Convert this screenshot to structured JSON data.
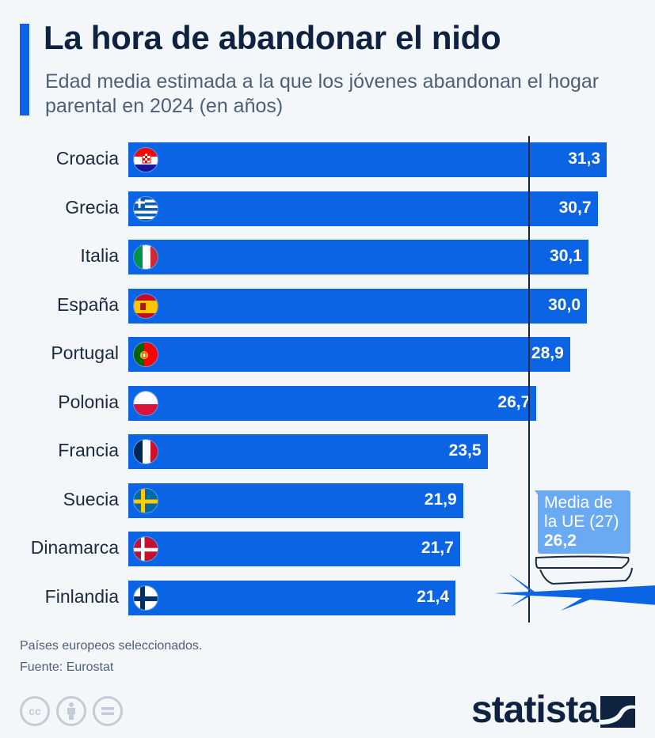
{
  "header": {
    "title": "La hora de abandonar el nido",
    "subtitle": "Edad media estimada a la que los jóvenes abandonan el hogar parental en 2024 (en años)"
  },
  "chart_data": {
    "type": "bar",
    "orientation": "horizontal",
    "title": "La hora de abandonar el nido",
    "subtitle": "Edad media estimada a la que los jóvenes abandonan el hogar parental en 2024 (en años)",
    "xlabel": "",
    "ylabel": "",
    "categories": [
      "Croacia",
      "Grecia",
      "Italia",
      "España",
      "Portugal",
      "Polonia",
      "Francia",
      "Suecia",
      "Dinamarca",
      "Finlandia"
    ],
    "values": [
      31.3,
      30.7,
      30.1,
      30.0,
      28.9,
      26.7,
      23.5,
      21.9,
      21.7,
      21.4
    ],
    "value_labels": [
      "31,3",
      "30,7",
      "30,1",
      "30,0",
      "28,9",
      "26,7",
      "23,5",
      "21,9",
      "21,7",
      "21,4"
    ],
    "flags": [
      "croatia-flag",
      "greece-flag",
      "italy-flag",
      "spain-flag",
      "portugal-flag",
      "poland-flag",
      "france-flag",
      "sweden-flag",
      "denmark-flag",
      "finland-flag"
    ],
    "xlim": [
      0,
      33
    ],
    "grid": false,
    "reference_line": {
      "label_line1": "Media de",
      "label_line2": "la UE (27)",
      "value": 26.2,
      "value_label": "26,2"
    },
    "bar_color": "#0a64e4"
  },
  "footer": {
    "note": "Países europeos seleccionados.",
    "source": "Fuente: Eurostat",
    "license_icons": [
      "cc-icon",
      "attribution-icon",
      "no-derivatives-icon"
    ],
    "brand": "statista"
  },
  "colors": {
    "background": "#f4f7fa",
    "accent": "#0a64e4",
    "title": "#0f2340",
    "avg_box": "#6aaaf2"
  }
}
